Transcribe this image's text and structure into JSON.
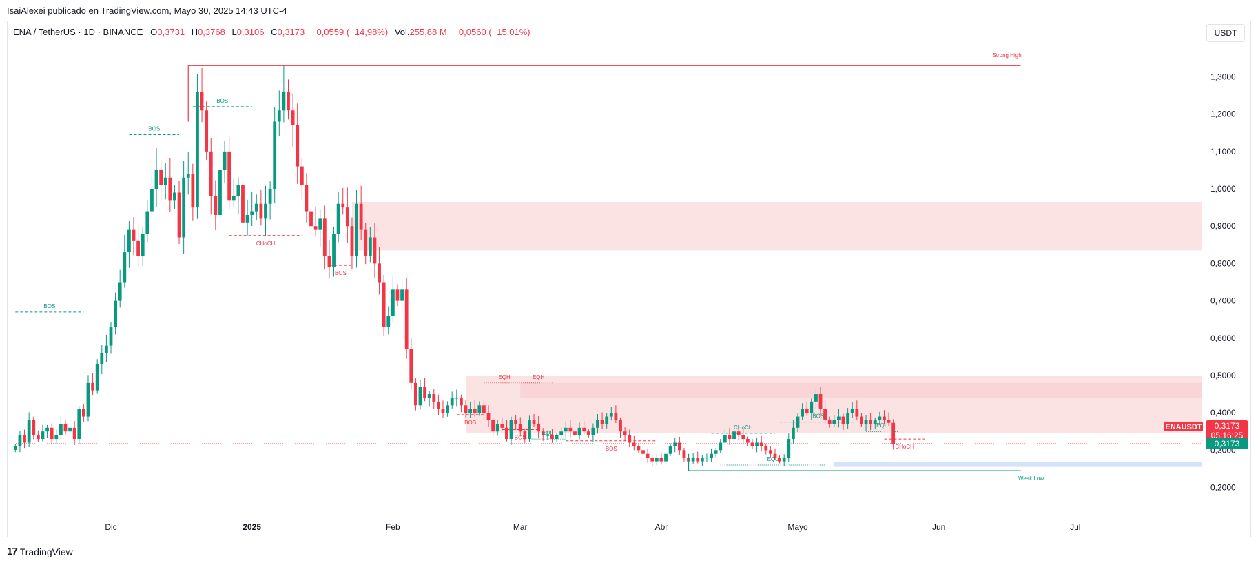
{
  "header": {
    "published": "IsaiAlexei publicado en TradingView.com, Mayo 30, 2025 14:43 UTC-4"
  },
  "legend": {
    "symbol": "ENA / TetherUS · 1D · BINANCE",
    "o_label": "O",
    "o_value": "0,3731",
    "h_label": "H",
    "h_value": "0,3768",
    "l_label": "L",
    "l_value": "0,3106",
    "c_label": "C",
    "c_value": "0,3173",
    "change": "−0,0559 (−14,98%)",
    "vol_label": "Vol.",
    "vol_value": "255,88 M",
    "vol_change": "−0,0560 (−15,01%)"
  },
  "currency_button": "USDT",
  "footer": {
    "logo_text": "TradingView",
    "logo_icon": "tradingview-logo-icon"
  },
  "colors": {
    "up": "#089981",
    "down": "#f23645",
    "supply_zone": "#f7c7ca",
    "demand_zone": "#cfe0fb"
  },
  "chart_data": {
    "type": "candlestick",
    "symbol": "ENAUSDT",
    "y_ticks": [
      "1,3000",
      "1,2000",
      "1,1000",
      "1,0000",
      "0,9000",
      "0,8000",
      "0,7000",
      "0,6000",
      "0,5000",
      "0,4000",
      "0,3000",
      "0,2000"
    ],
    "y_tick_values": [
      1.3,
      1.2,
      1.1,
      1.0,
      0.9,
      0.8,
      0.7,
      0.6,
      0.5,
      0.4,
      0.3,
      0.2
    ],
    "x_ticks": [
      {
        "label": "Dic",
        "date": "2024-12-01",
        "bold": false
      },
      {
        "label": "2025",
        "date": "2025-01-01",
        "bold": true
      },
      {
        "label": "Feb",
        "date": "2025-02-01",
        "bold": false
      },
      {
        "label": "Mar",
        "date": "2025-03-01",
        "bold": false
      },
      {
        "label": "Abr",
        "date": "2025-04-01",
        "bold": false
      },
      {
        "label": "Mayo",
        "date": "2025-05-01",
        "bold": false
      },
      {
        "label": "Jun",
        "date": "2025-06-01",
        "bold": false
      },
      {
        "label": "Jul",
        "date": "2025-07-01",
        "bold": false
      }
    ],
    "first_date": "2024-11-10",
    "last_price": 0.3173,
    "price_label": {
      "symbol": "ENAUSDT",
      "price": "0,3173",
      "countdown": "05:16:25"
    },
    "close_label": "0,3173",
    "closes": [
      0.31,
      0.34,
      0.32,
      0.38,
      0.34,
      0.33,
      0.35,
      0.36,
      0.33,
      0.34,
      0.37,
      0.35,
      0.36,
      0.33,
      0.41,
      0.39,
      0.48,
      0.46,
      0.53,
      0.56,
      0.58,
      0.63,
      0.7,
      0.75,
      0.83,
      0.89,
      0.86,
      0.82,
      0.88,
      0.94,
      1.0,
      1.05,
      1.01,
      1.03,
      0.97,
      0.99,
      0.87,
      1.03,
      1.04,
      0.95,
      1.26,
      1.21,
      1.1,
      0.98,
      0.93,
      1.05,
      1.1,
      0.97,
      0.98,
      1.01,
      0.91,
      0.93,
      0.94,
      0.96,
      0.92,
      0.96,
      1.0,
      1.18,
      1.21,
      1.26,
      1.21,
      1.17,
      1.06,
      1.01,
      0.94,
      0.9,
      0.89,
      0.92,
      0.82,
      0.79,
      0.88,
      0.96,
      0.95,
      0.9,
      0.82,
      0.96,
      0.89,
      0.82,
      0.87,
      0.8,
      0.75,
      0.63,
      0.66,
      0.73,
      0.7,
      0.73,
      0.57,
      0.48,
      0.42,
      0.47,
      0.44,
      0.45,
      0.43,
      0.41,
      0.4,
      0.42,
      0.44,
      0.44,
      0.42,
      0.4,
      0.41,
      0.4,
      0.42,
      0.4,
      0.38,
      0.35,
      0.37,
      0.36,
      0.33,
      0.38,
      0.37,
      0.35,
      0.33,
      0.38,
      0.37,
      0.35,
      0.34,
      0.34,
      0.33,
      0.34,
      0.35,
      0.36,
      0.35,
      0.34,
      0.36,
      0.35,
      0.34,
      0.36,
      0.38,
      0.37,
      0.39,
      0.4,
      0.38,
      0.35,
      0.34,
      0.32,
      0.31,
      0.3,
      0.29,
      0.28,
      0.27,
      0.28,
      0.27,
      0.29,
      0.31,
      0.32,
      0.3,
      0.28,
      0.27,
      0.28,
      0.27,
      0.28,
      0.28,
      0.29,
      0.3,
      0.32,
      0.34,
      0.33,
      0.35,
      0.34,
      0.33,
      0.32,
      0.31,
      0.32,
      0.31,
      0.3,
      0.29,
      0.28,
      0.27,
      0.28,
      0.33,
      0.36,
      0.39,
      0.41,
      0.4,
      0.43,
      0.45,
      0.41,
      0.38,
      0.37,
      0.38,
      0.39,
      0.37,
      0.4,
      0.41,
      0.39,
      0.37,
      0.38,
      0.37,
      0.38,
      0.39,
      0.38,
      0.3731,
      0.3173
    ],
    "zones": [
      {
        "type": "supply",
        "from": "2025-01-23",
        "to_end": true,
        "top": 0.965,
        "bottom": 0.835
      },
      {
        "type": "supply",
        "from": "2025-02-17",
        "to_end": true,
        "top": 0.5,
        "bottom": 0.345
      },
      {
        "type": "supply",
        "from": "2025-03-01",
        "to_end": true,
        "top": 0.48,
        "bottom": 0.44
      },
      {
        "type": "demand",
        "from": "2025-05-09",
        "to_end": true,
        "top": 0.268,
        "bottom": 0.255
      }
    ],
    "levels": [
      {
        "label": "Strong High",
        "price": 1.33,
        "from": "2024-12-18",
        "to": "2025-06-19",
        "color": "#f23645",
        "style": "solid"
      },
      {
        "label": "Weak Low",
        "price": 0.245,
        "from": "2025-04-07",
        "to": "2025-06-19",
        "color": "#089981",
        "style": "solid"
      }
    ],
    "structure": [
      {
        "label": "BOS",
        "price": 0.67,
        "from": "2024-11-10",
        "to": "2024-11-25",
        "color": "#089981",
        "style": "dash"
      },
      {
        "label": "BOS",
        "price": 1.145,
        "from": "2024-12-05",
        "to": "2024-12-16",
        "color": "#089981",
        "style": "dash"
      },
      {
        "label": "BOS",
        "price": 1.22,
        "from": "2024-12-19",
        "to": "2025-01-01",
        "color": "#089981",
        "style": "dash"
      },
      {
        "label": "CHoCH",
        "price": 0.875,
        "from": "2024-12-27",
        "to": "2025-01-12",
        "color": "#f23645",
        "style": "dash"
      },
      {
        "label": "BOS",
        "price": 0.795,
        "from": "2025-01-18",
        "to": "2025-01-23",
        "color": "#f23645",
        "style": "dash"
      },
      {
        "label": "BOS",
        "price": 0.395,
        "from": "2025-02-15",
        "to": "2025-02-21",
        "color": "#f23645",
        "style": "dash"
      },
      {
        "label": "EQH",
        "price": 0.48,
        "from": "2025-02-21",
        "to": "2025-03-02",
        "color": "#f23645",
        "style": "dot"
      },
      {
        "label": "EQH",
        "price": 0.48,
        "from": "2025-03-02",
        "to": "2025-03-08",
        "color": "#f23645",
        "style": "dot"
      },
      {
        "label": "BOS",
        "price": 0.355,
        "from": "2025-02-25",
        "to": "2025-03-05",
        "color": "#f23645",
        "style": "dash"
      },
      {
        "label": "EQL",
        "price": 0.33,
        "from": "2025-03-03",
        "to": "2025-03-11",
        "color": "#089981",
        "style": "dot"
      },
      {
        "label": "BOS",
        "price": 0.325,
        "from": "2025-03-11",
        "to": "2025-03-31",
        "color": "#f23645",
        "style": "dash"
      },
      {
        "label": "CHoCH",
        "price": 0.345,
        "from": "2025-04-12",
        "to": "2025-04-26",
        "color": "#089981",
        "style": "dash"
      },
      {
        "label": "EQL",
        "price": 0.26,
        "from": "2025-04-14",
        "to": "2025-05-07",
        "color": "#089981",
        "style": "dot"
      },
      {
        "label": "BOS",
        "price": 0.375,
        "from": "2025-04-27",
        "to": "2025-05-14",
        "color": "#089981",
        "style": "dash"
      },
      {
        "label": "EQL",
        "price": 0.35,
        "from": "2025-05-16",
        "to": "2025-05-23",
        "color": "#089981",
        "style": "dot"
      },
      {
        "label": "CHoCH",
        "price": 0.33,
        "from": "2025-05-20",
        "to": "2025-05-29",
        "color": "#f23645",
        "style": "dash"
      }
    ]
  }
}
